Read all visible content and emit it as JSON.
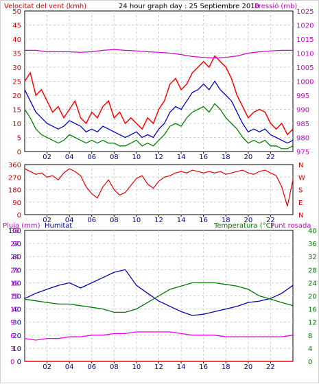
{
  "header": {
    "left_label": "Velocitat del vent (kmh)",
    "title": "24 hour graph day : 25 Septiembre 2010",
    "right_label": "Pressió (mb)"
  },
  "colors": {
    "wind_gust": "#ff0000",
    "wind_avg": "#0000cc",
    "wind_min": "#008000",
    "pressure": "#cc00cc",
    "direction": "#e00000",
    "humidity": "#0000aa",
    "temperature": "#007700",
    "dewpoint": "#ee00ee",
    "rain": "#ff0000",
    "grid": "#cccccc",
    "label_red": "#cc0000",
    "label_blue": "#000099",
    "label_green": "#007700",
    "label_magenta": "#cc00cc"
  },
  "x_ticks": [
    "02",
    "04",
    "06",
    "08",
    "10",
    "12",
    "14",
    "16",
    "18",
    "20",
    "22"
  ],
  "chart_data": [
    {
      "type": "line",
      "name": "wind",
      "xlim": [
        0,
        24
      ],
      "ylim": [
        0,
        50
      ],
      "y_ticks": [
        "0",
        "5",
        "10",
        "15",
        "20",
        "25",
        "30",
        "35",
        "40",
        "45",
        "50"
      ],
      "y2lim": [
        975,
        1025
      ],
      "y2_ticks": [
        "975",
        "980",
        "985",
        "990",
        "995",
        "1000",
        "1005",
        "1010",
        "1015",
        "1020",
        "1025"
      ],
      "series": [
        {
          "key": "gust",
          "x": [
            0,
            0.5,
            1,
            1.5,
            2,
            2.5,
            3,
            3.5,
            4,
            4.5,
            5,
            5.5,
            6,
            6.5,
            7,
            7.5,
            8,
            8.5,
            9,
            9.5,
            10,
            10.5,
            11,
            11.5,
            12,
            12.5,
            13,
            13.5,
            14,
            14.5,
            15,
            15.5,
            16,
            16.5,
            17,
            17.5,
            18,
            18.5,
            19,
            19.5,
            20,
            20.5,
            21,
            21.5,
            22,
            22.5,
            23,
            23.5,
            24
          ],
          "y": [
            25,
            28,
            20,
            22,
            18,
            14,
            16,
            12,
            15,
            18,
            12,
            10,
            14,
            12,
            16,
            18,
            12,
            14,
            10,
            12,
            10,
            8,
            12,
            10,
            15,
            18,
            24,
            26,
            22,
            24,
            28,
            30,
            32,
            30,
            34,
            32,
            30,
            26,
            20,
            16,
            12,
            14,
            15,
            14,
            10,
            8,
            10,
            6,
            8
          ]
        },
        {
          "key": "avg",
          "x": [
            0,
            0.5,
            1,
            1.5,
            2,
            2.5,
            3,
            3.5,
            4,
            4.5,
            5,
            5.5,
            6,
            6.5,
            7,
            7.5,
            8,
            8.5,
            9,
            9.5,
            10,
            10.5,
            11,
            11.5,
            12,
            12.5,
            13,
            13.5,
            14,
            14.5,
            15,
            15.5,
            16,
            16.5,
            17,
            17.5,
            18,
            18.5,
            19,
            19.5,
            20,
            20.5,
            21,
            21.5,
            22,
            22.5,
            23,
            23.5,
            24
          ],
          "y": [
            22,
            18,
            14,
            12,
            10,
            9,
            8,
            9,
            11,
            10,
            9,
            7,
            8,
            7,
            9,
            8,
            7,
            6,
            5,
            6,
            7,
            5,
            6,
            5,
            8,
            10,
            14,
            16,
            15,
            18,
            21,
            22,
            24,
            22,
            25,
            22,
            20,
            18,
            14,
            10,
            7,
            8,
            7,
            8,
            6,
            5,
            4,
            3,
            4
          ]
        },
        {
          "key": "min",
          "x": [
            0,
            0.5,
            1,
            1.5,
            2,
            2.5,
            3,
            3.5,
            4,
            4.5,
            5,
            5.5,
            6,
            6.5,
            7,
            7.5,
            8,
            8.5,
            9,
            9.5,
            10,
            10.5,
            11,
            11.5,
            12,
            12.5,
            13,
            13.5,
            14,
            14.5,
            15,
            15.5,
            16,
            16.5,
            17,
            17.5,
            18,
            18.5,
            19,
            19.5,
            20,
            20.5,
            21,
            21.5,
            22,
            22.5,
            23,
            23.5,
            24
          ],
          "y": [
            15,
            12,
            8,
            6,
            5,
            4,
            3,
            4,
            6,
            5,
            4,
            3,
            4,
            3,
            4,
            3,
            3,
            2,
            2,
            3,
            4,
            2,
            3,
            2,
            4,
            6,
            9,
            10,
            9,
            12,
            14,
            15,
            16,
            14,
            17,
            15,
            12,
            10,
            8,
            5,
            3,
            4,
            3,
            4,
            2,
            2,
            1,
            1,
            2
          ]
        }
      ],
      "pressure": {
        "x": [
          0,
          1,
          2,
          3,
          4,
          5,
          6,
          7,
          8,
          9,
          10,
          11,
          12,
          13,
          14,
          15,
          16,
          17,
          18,
          19,
          20,
          21,
          22,
          23,
          24
        ],
        "y": [
          1011,
          1011,
          1010.5,
          1010.5,
          1010.5,
          1010.3,
          1010.5,
          1011,
          1011.3,
          1011,
          1010.8,
          1010.5,
          1010.3,
          1010,
          1009.5,
          1008.8,
          1008.5,
          1008.3,
          1008.5,
          1009,
          1010,
          1010.5,
          1010.8,
          1011,
          1011
        ]
      }
    },
    {
      "type": "line",
      "name": "wind_direction",
      "xlim": [
        0,
        24
      ],
      "ylim": [
        0,
        360
      ],
      "y_ticks": [
        "0",
        "90",
        "180",
        "270",
        "360"
      ],
      "right_labels": [
        "N",
        "W",
        "S",
        "E",
        "N"
      ],
      "series": [
        {
          "key": "dir",
          "x": [
            0,
            0.5,
            1,
            1.5,
            2,
            2.5,
            3,
            3.5,
            4,
            4.5,
            5,
            5.5,
            6,
            6.5,
            7,
            7.5,
            8,
            8.5,
            9,
            9.5,
            10,
            10.5,
            11,
            11.5,
            12,
            12.5,
            13,
            13.5,
            14,
            14.5,
            15,
            15.5,
            16,
            16.5,
            17,
            17.5,
            18,
            18.5,
            19,
            19.5,
            20,
            20.5,
            21,
            21.5,
            22,
            22.5,
            23,
            23.5,
            24
          ],
          "y": [
            330,
            310,
            290,
            300,
            270,
            280,
            250,
            300,
            330,
            310,
            280,
            200,
            150,
            120,
            200,
            250,
            180,
            140,
            160,
            210,
            260,
            280,
            220,
            190,
            240,
            270,
            280,
            300,
            310,
            300,
            320,
            310,
            300,
            310,
            300,
            310,
            290,
            300,
            310,
            320,
            300,
            290,
            310,
            320,
            300,
            280,
            200,
            60,
            250
          ]
        }
      ]
    },
    {
      "type": "line",
      "name": "humidity_temperature",
      "xlim": [
        0,
        24
      ],
      "ylim": [
        0,
        100
      ],
      "y_ticks": [
        "0",
        "10",
        "20",
        "30",
        "40",
        "50",
        "60",
        "70",
        "80",
        "90",
        "100"
      ],
      "y_mid_ticks": [
        "0",
        "3",
        "6",
        "9",
        "12",
        "15",
        "18",
        "21",
        "24",
        "27",
        "30"
      ],
      "y2lim": [
        0,
        40
      ],
      "y2_ticks": [
        "0",
        "4",
        "8",
        "12",
        "16",
        "20",
        "24",
        "28",
        "32",
        "36",
        "40"
      ],
      "labels": {
        "rain": "Pluja (mm)",
        "humidity": "Humitat",
        "temperature": "Temperatura (°C)",
        "dewpoint": "Punt rosada"
      },
      "humidity": {
        "x": [
          0,
          1,
          2,
          3,
          4,
          5,
          6,
          7,
          8,
          9,
          10,
          11,
          12,
          13,
          14,
          15,
          16,
          17,
          18,
          19,
          20,
          21,
          22,
          23,
          24
        ],
        "y": [
          48,
          52,
          55,
          58,
          60,
          56,
          60,
          64,
          68,
          70,
          58,
          52,
          46,
          42,
          38,
          35,
          36,
          38,
          40,
          42,
          45,
          46,
          48,
          52,
          58
        ]
      },
      "temperature": {
        "x": [
          0,
          1,
          2,
          3,
          4,
          5,
          6,
          7,
          8,
          9,
          10,
          11,
          12,
          13,
          14,
          15,
          16,
          17,
          18,
          19,
          20,
          21,
          22,
          23,
          24
        ],
        "y": [
          19,
          18.5,
          18,
          17.5,
          17.5,
          17,
          16.5,
          16,
          15,
          15,
          16,
          18,
          20,
          22,
          23,
          24,
          24,
          24,
          23.5,
          23,
          22,
          20,
          19,
          18,
          17
        ]
      },
      "dewpoint": {
        "x": [
          0,
          1,
          2,
          3,
          4,
          5,
          6,
          7,
          8,
          9,
          10,
          11,
          12,
          13,
          14,
          15,
          16,
          17,
          18,
          19,
          20,
          21,
          22,
          23,
          24
        ],
        "y": [
          7,
          6.5,
          7,
          7,
          7.5,
          7.5,
          8,
          8,
          8.5,
          8.5,
          9,
          9,
          9,
          9,
          8.5,
          8,
          8,
          8,
          7.5,
          7.5,
          7.5,
          7.5,
          7.5,
          7.5,
          8
        ]
      },
      "rain": {
        "x": [
          0,
          24
        ],
        "y": [
          0,
          0
        ]
      }
    }
  ]
}
